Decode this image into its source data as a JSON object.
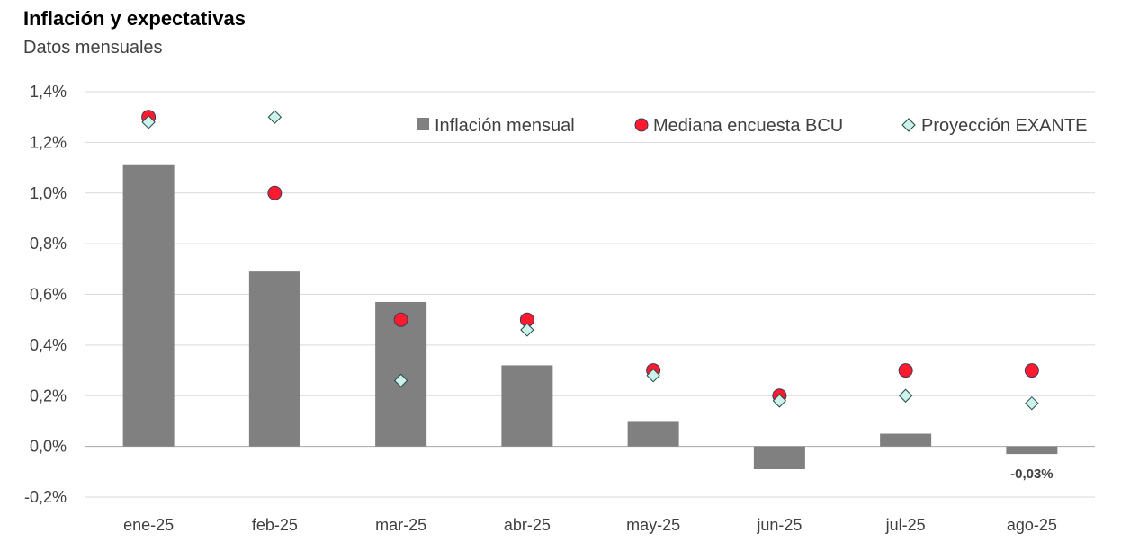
{
  "chart_data": {
    "type": "bar",
    "title": "Inflación y expectativas",
    "subtitle": "Datos mensuales",
    "categories": [
      "ene-25",
      "feb-25",
      "mar-25",
      "abr-25",
      "may-25",
      "jun-25",
      "jul-25",
      "ago-25"
    ],
    "series": [
      {
        "name": "Inflación mensual",
        "kind": "bar",
        "color": "#808080",
        "values": [
          1.11,
          0.69,
          0.57,
          0.32,
          0.1,
          -0.09,
          0.05,
          -0.03
        ]
      },
      {
        "name": "Mediana encuesta BCU",
        "kind": "marker-circle",
        "color": "#ff1a2e",
        "values": [
          1.3,
          1.0,
          0.5,
          0.5,
          0.3,
          0.2,
          0.3,
          0.3
        ]
      },
      {
        "name": "Proyección EXANTE",
        "kind": "marker-diamond",
        "color": "#ccf2ea",
        "values": [
          1.28,
          1.3,
          0.26,
          0.46,
          0.28,
          0.18,
          0.2,
          0.17
        ]
      }
    ],
    "data_labels": [
      {
        "category": "ago-25",
        "text": "-0,03%"
      }
    ],
    "yticks": [
      "-0,2%",
      "0,0%",
      "0,2%",
      "0,4%",
      "0,6%",
      "0,8%",
      "1,0%",
      "1,2%",
      "1,4%"
    ],
    "ylim": [
      -0.2,
      1.4
    ],
    "grid": true,
    "legend": "top-right"
  }
}
